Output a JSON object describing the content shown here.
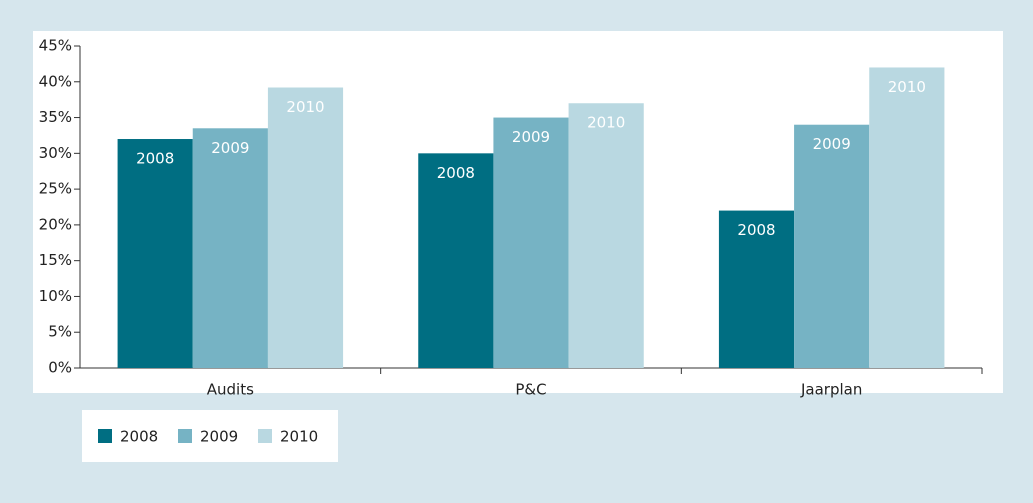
{
  "chart_data": {
    "type": "bar",
    "categories": [
      "Audits",
      "P&C",
      "Jaarplan"
    ],
    "series": [
      {
        "name": "2008",
        "color": "#006e82",
        "values": [
          32,
          30,
          22
        ]
      },
      {
        "name": "2009",
        "color": "#76b3c4",
        "values": [
          33.5,
          35,
          34
        ]
      },
      {
        "name": "2010",
        "color": "#b9d8e1",
        "values": [
          39.2,
          37,
          42
        ]
      }
    ],
    "ylim": [
      0,
      45
    ],
    "yticks": [
      {
        "value": 0,
        "label": "0%"
      },
      {
        "value": 5,
        "label": "5%"
      },
      {
        "value": 10,
        "label": "10%"
      },
      {
        "value": 15,
        "label": "15%"
      },
      {
        "value": 20,
        "label": "20%"
      },
      {
        "value": 25,
        "label": "25%"
      },
      {
        "value": 30,
        "label": "30%"
      },
      {
        "value": 35,
        "label": "35%"
      },
      {
        "value": 40,
        "label": "40%"
      },
      {
        "value": 45,
        "label": "45%"
      }
    ],
    "legend": "bottom-left"
  }
}
